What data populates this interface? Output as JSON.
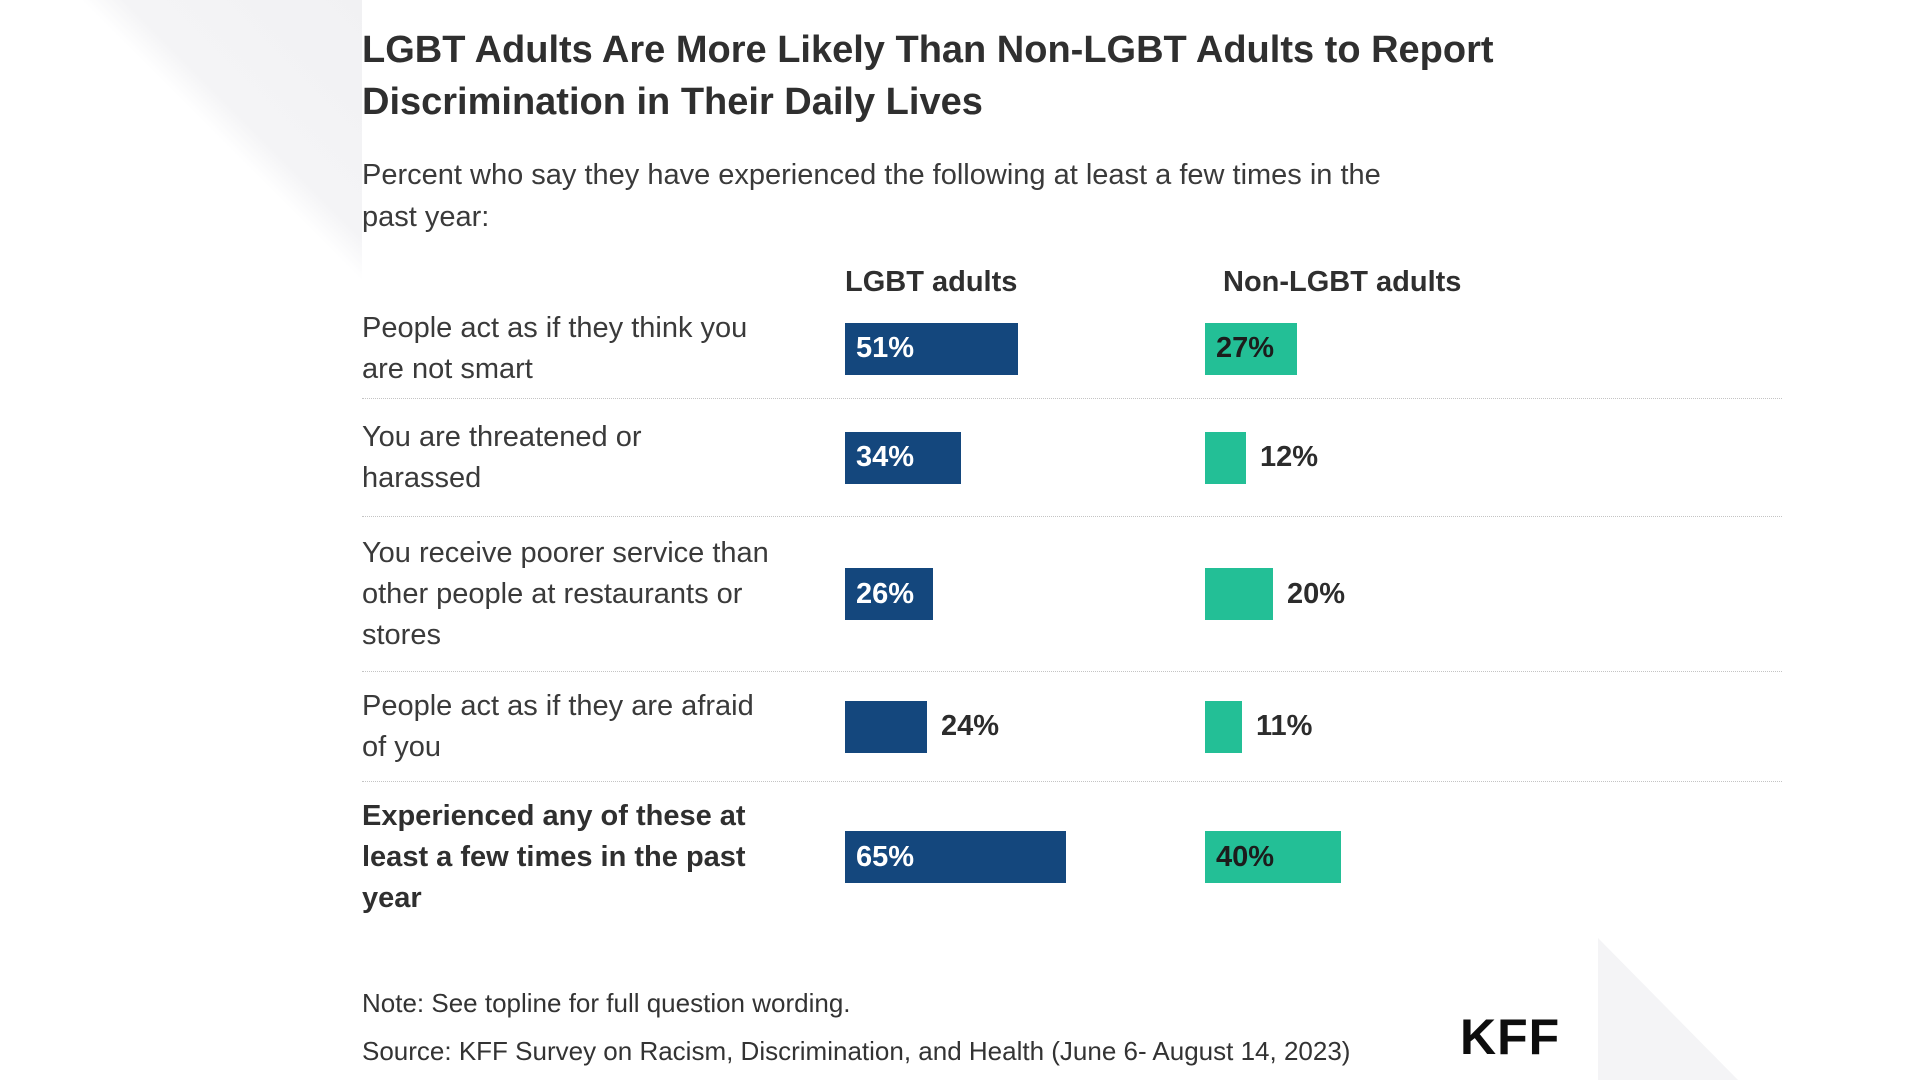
{
  "page": {
    "title": "LGBT Adults Are More Likely Than Non-LGBT Adults to Report\nDiscrimination in Their Daily Lives",
    "subtitle": "Percent who say they have experienced the following at least a few times in the\npast year:",
    "note": "Note: See topline for full question wording.",
    "source": "Source: KFF Survey on Racism, Discrimination, and Health (June 6- August 14, 2023)",
    "logo": "KFF"
  },
  "columns": {
    "lgbt": "LGBT adults",
    "non_lgbt": "Non-LGBT adults"
  },
  "colors": {
    "lgbt_bar": "#14477D",
    "non_lgbt_bar": "#23BF96",
    "bar_label_light": "#FFFFFF",
    "bar_label_dark": "#1C1C1C"
  },
  "rows": [
    {
      "label": "People act as if they think you\nare not smart",
      "bold": false,
      "lgbt": {
        "value": 51,
        "label": "51%",
        "label_position": "inside"
      },
      "non_lgbt": {
        "value": 27,
        "label": "27%",
        "label_position": "inside"
      }
    },
    {
      "label": "You are threatened or\nharassed",
      "bold": false,
      "lgbt": {
        "value": 34,
        "label": "34%",
        "label_position": "inside"
      },
      "non_lgbt": {
        "value": 12,
        "label": "12%",
        "label_position": "outside"
      }
    },
    {
      "label": "You receive poorer service than\nother people at restaurants or\nstores",
      "bold": false,
      "lgbt": {
        "value": 26,
        "label": "26%",
        "label_position": "inside"
      },
      "non_lgbt": {
        "value": 20,
        "label": "20%",
        "label_position": "outside"
      }
    },
    {
      "label": "People act as if they are afraid\nof you",
      "bold": false,
      "lgbt": {
        "value": 24,
        "label": "24%",
        "label_position": "outside"
      },
      "non_lgbt": {
        "value": 11,
        "label": "11%",
        "label_position": "outside"
      }
    },
    {
      "label": "Experienced any of these at\nleast a few times in the past\nyear",
      "bold": true,
      "lgbt": {
        "value": 65,
        "label": "65%",
        "label_position": "inside"
      },
      "non_lgbt": {
        "value": 40,
        "label": "40%",
        "label_position": "inside"
      }
    }
  ],
  "chart_data": {
    "type": "bar",
    "orientation": "horizontal",
    "title": "LGBT Adults Are More Likely Than Non-LGBT Adults to Report Discrimination in Their Daily Lives",
    "subtitle": "Percent who say they have experienced the following at least a few times in the past year:",
    "categories": [
      "People act as if they think you are not smart",
      "You are threatened or harassed",
      "You receive poorer service than other people at restaurants or stores",
      "People act as if they are afraid of you",
      "Experienced any of these at least a few times in the past year"
    ],
    "series": [
      {
        "name": "LGBT adults",
        "color": "#14477D",
        "values": [
          51,
          34,
          26,
          24,
          65
        ]
      },
      {
        "name": "Non-LGBT adults",
        "color": "#23BF96",
        "values": [
          27,
          12,
          20,
          11,
          40
        ]
      }
    ],
    "unit": "%",
    "xlim": [
      0,
      100
    ],
    "value_labels": true,
    "grid": false,
    "legend_position": "column-headers"
  }
}
